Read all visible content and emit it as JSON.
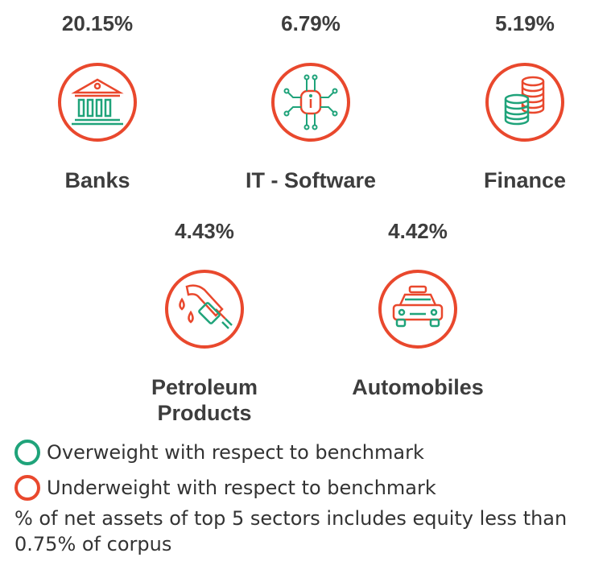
{
  "colors": {
    "underweight": "#e9482d",
    "overweight": "#1fa37a",
    "text": "#3d3d3d"
  },
  "sectors": [
    {
      "name": "Banks",
      "percent": "20.15%",
      "icon": "bank-building-icon",
      "status": "underweight"
    },
    {
      "name": "IT - Software",
      "percent": "6.79%",
      "icon": "circuit-chip-icon",
      "status": "underweight"
    },
    {
      "name": "Finance",
      "percent": "5.19%",
      "icon": "coin-stack-icon",
      "status": "underweight"
    },
    {
      "name": "Petroleum Products",
      "name_line1": "Petroleum",
      "name_line2": "Products",
      "percent": "4.43%",
      "icon": "fuel-nozzle-icon",
      "status": "underweight"
    },
    {
      "name": "Automobiles",
      "percent": "4.42%",
      "icon": "car-icon",
      "status": "underweight"
    }
  ],
  "legend": {
    "overweight_label": "Overweight with respect to benchmark",
    "underweight_label": "Underweight with respect to benchmark"
  },
  "footnote": "% of net assets of top 5 sectors includes equity less than 0.75% of corpus"
}
